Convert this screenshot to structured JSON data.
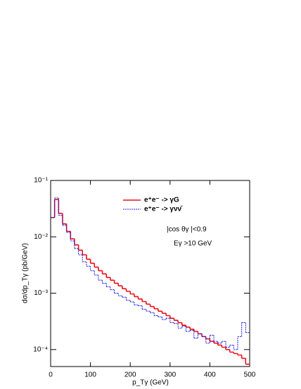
{
  "chart_data": {
    "type": "histogram",
    "ylabel": "dσ/dp_Tγ (pb/GeV)",
    "xlabel": "p_Tγ  (GeV)",
    "annotations": [
      "|cos θγ |<0.9",
      "Eγ >10 GeV"
    ],
    "bins": [
      0,
      10,
      20,
      30,
      40,
      50,
      60,
      70,
      80,
      90,
      100,
      110,
      120,
      130,
      140,
      150,
      160,
      170,
      180,
      190,
      200,
      210,
      220,
      230,
      240,
      250,
      260,
      270,
      280,
      290,
      300,
      310,
      320,
      330,
      340,
      350,
      360,
      370,
      380,
      390,
      400,
      410,
      420,
      430,
      440,
      450,
      460,
      470,
      480,
      490,
      500
    ],
    "series": [
      {
        "name": "e⁺e⁻ -> γG",
        "color": "#e8101a",
        "values": [
          0.022,
          0.046,
          0.026,
          0.017,
          0.0125,
          0.0092,
          0.0072,
          0.0058,
          0.0048,
          0.004,
          0.0034,
          0.0029,
          0.0025,
          0.0022,
          0.0019,
          0.0017,
          0.0015,
          0.00135,
          0.0012,
          0.00108,
          0.00097,
          0.00087,
          0.00079,
          0.00071,
          0.00064,
          0.00058,
          0.00053,
          0.00048,
          0.00044,
          0.0004,
          0.00036,
          0.00033,
          0.0003,
          0.00027,
          0.00025,
          0.00023,
          0.00021,
          0.00019,
          0.00017,
          0.000155,
          0.00014,
          0.00013,
          0.00012,
          0.00011,
          0.0001,
          9e-05,
          8.5e-05,
          8e-05,
          7e-05,
          5.5e-05
        ]
      },
      {
        "name": "e⁺e⁻ -> γνν̄",
        "color": "#2020e0",
        "values": [
          0.022,
          0.049,
          0.024,
          0.016,
          0.012,
          0.0085,
          0.0062,
          0.0048,
          0.0036,
          0.003,
          0.0025,
          0.0021,
          0.0017,
          0.0015,
          0.0013,
          0.00115,
          0.001,
          0.0009,
          0.00085,
          0.00075,
          0.0007,
          0.00062,
          0.0006,
          0.00052,
          0.00048,
          0.00045,
          0.0004,
          0.00038,
          0.00034,
          0.00036,
          0.0003,
          0.00029,
          0.00024,
          0.00026,
          0.00021,
          0.00022,
          0.00016,
          0.00019,
          0.00017,
          0.00013,
          0.00018,
          0.00014,
          0.00013,
          0.00014,
          0.00011,
          0.00012,
          0.0001,
          0.00017,
          0.0003,
          0.0002
        ]
      }
    ],
    "xlim": [
      0,
      500
    ],
    "xticks": [
      0,
      100,
      200,
      300,
      400,
      500
    ],
    "ylim": [
      5e-05,
      0.1
    ],
    "log_y": true,
    "yticks": [
      {
        "value": 0.1,
        "label": "10⁻¹"
      },
      {
        "value": 0.01,
        "label": "10⁻²"
      },
      {
        "value": 0.001,
        "label": "10⁻³"
      },
      {
        "value": 0.0001,
        "label": "10⁻⁴"
      }
    ]
  }
}
